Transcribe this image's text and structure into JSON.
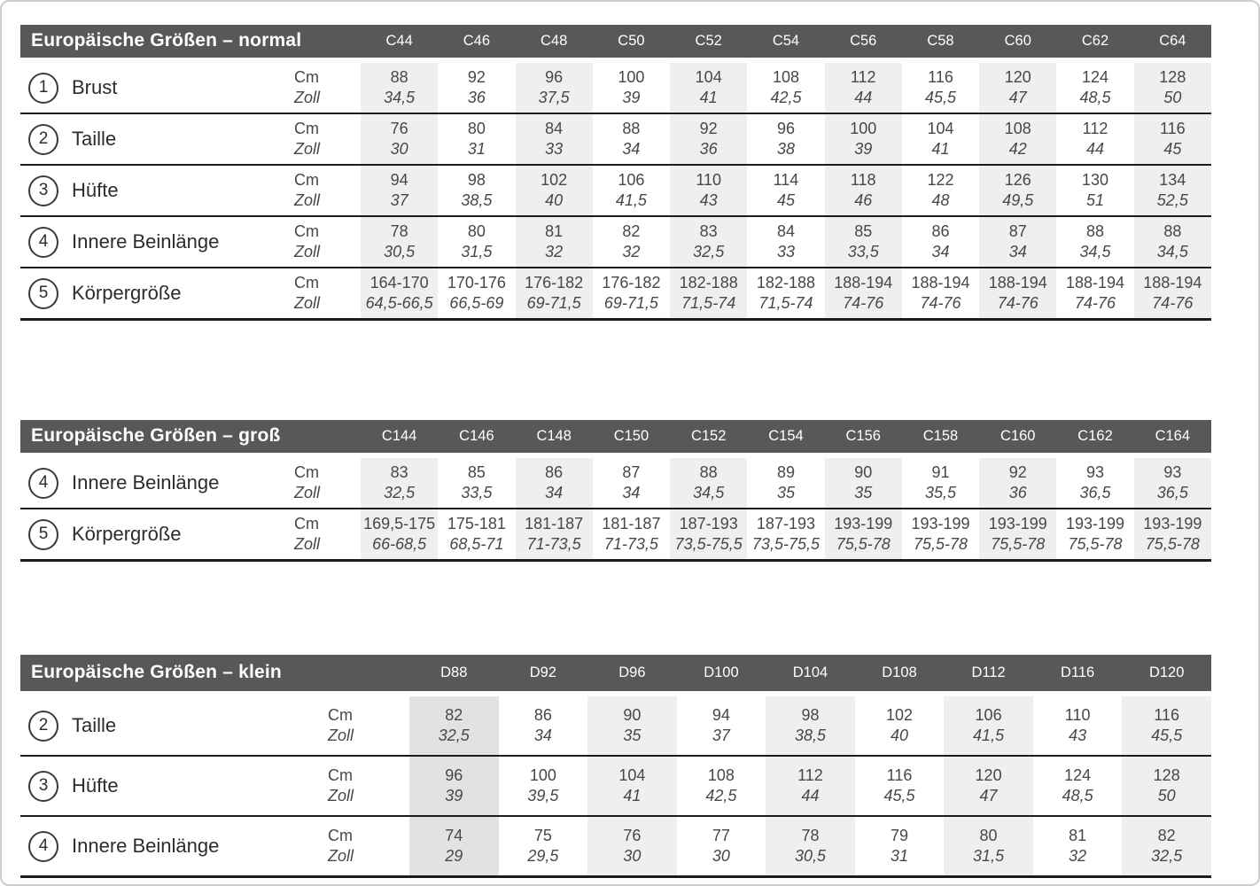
{
  "colors": {
    "header_bg": "#58585a",
    "header_text": "#ffffff",
    "column_band": "#efefef",
    "column_band_dark": "#e2e2e2",
    "separator_line": "#1c1c1c",
    "page_border": "#cdcdcd",
    "value_text": "#47474a"
  },
  "units": {
    "cm": "Cm",
    "zoll": "Zoll"
  },
  "tables": [
    {
      "title": "Europäische Größen – normal",
      "columns": [
        "C44",
        "C46",
        "C48",
        "C50",
        "C52",
        "C54",
        "C56",
        "C58",
        "C60",
        "C62",
        "C64"
      ],
      "rows": [
        {
          "num": "1",
          "label": "Brust",
          "cm": [
            "88",
            "92",
            "96",
            "100",
            "104",
            "108",
            "112",
            "116",
            "120",
            "124",
            "128"
          ],
          "zoll": [
            "34,5",
            "36",
            "37,5",
            "39",
            "41",
            "42,5",
            "44",
            "45,5",
            "47",
            "48,5",
            "50"
          ]
        },
        {
          "num": "2",
          "label": "Taille",
          "cm": [
            "76",
            "80",
            "84",
            "88",
            "92",
            "96",
            "100",
            "104",
            "108",
            "112",
            "116"
          ],
          "zoll": [
            "30",
            "31",
            "33",
            "34",
            "36",
            "38",
            "39",
            "41",
            "42",
            "44",
            "45"
          ]
        },
        {
          "num": "3",
          "label": "Hüfte",
          "cm": [
            "94",
            "98",
            "102",
            "106",
            "110",
            "114",
            "118",
            "122",
            "126",
            "130",
            "134"
          ],
          "zoll": [
            "37",
            "38,5",
            "40",
            "41,5",
            "43",
            "45",
            "46",
            "48",
            "49,5",
            "51",
            "52,5"
          ]
        },
        {
          "num": "4",
          "label": "Innere Beinlänge",
          "cm": [
            "78",
            "80",
            "81",
            "82",
            "83",
            "84",
            "85",
            "86",
            "87",
            "88",
            "88"
          ],
          "zoll": [
            "30,5",
            "31,5",
            "32",
            "32",
            "32,5",
            "33",
            "33,5",
            "34",
            "34",
            "34,5",
            "34,5"
          ]
        },
        {
          "num": "5",
          "label": "Körpergröße",
          "cm": [
            "164-170",
            "170-176",
            "176-182",
            "176-182",
            "182-188",
            "182-188",
            "188-194",
            "188-194",
            "188-194",
            "188-194",
            "188-194"
          ],
          "zoll": [
            "64,5-66,5",
            "66,5-69",
            "69-71,5",
            "69-71,5",
            "71,5-74",
            "71,5-74",
            "74-76",
            "74-76",
            "74-76",
            "74-76",
            "74-76"
          ]
        }
      ]
    },
    {
      "title": "Europäische Größen – groß",
      "columns": [
        "C144",
        "C146",
        "C148",
        "C150",
        "C152",
        "C154",
        "C156",
        "C158",
        "C160",
        "C162",
        "C164"
      ],
      "rows": [
        {
          "num": "4",
          "label": "Innere Beinlänge",
          "cm": [
            "83",
            "85",
            "86",
            "87",
            "88",
            "89",
            "90",
            "91",
            "92",
            "93",
            "93"
          ],
          "zoll": [
            "32,5",
            "33,5",
            "34",
            "34",
            "34,5",
            "35",
            "35",
            "35,5",
            "36",
            "36,5",
            "36,5"
          ]
        },
        {
          "num": "5",
          "label": "Körpergröße",
          "cm": [
            "169,5-175",
            "175-181",
            "181-187",
            "181-187",
            "187-193",
            "187-193",
            "193-199",
            "193-199",
            "193-199",
            "193-199",
            "193-199"
          ],
          "zoll": [
            "66-68,5",
            "68,5-71",
            "71-73,5",
            "71-73,5",
            "73,5-75,5",
            "73,5-75,5",
            "75,5-78",
            "75,5-78",
            "75,5-78",
            "75,5-78",
            "75,5-78"
          ]
        }
      ]
    },
    {
      "title": "Europäische Größen – klein",
      "columns": [
        "D88",
        "D92",
        "D96",
        "D100",
        "D104",
        "D108",
        "D112",
        "D116",
        "D120"
      ],
      "rows": [
        {
          "num": "2",
          "label": "Taille",
          "cm": [
            "82",
            "86",
            "90",
            "94",
            "98",
            "102",
            "106",
            "110",
            "116"
          ],
          "zoll": [
            "32,5",
            "34",
            "35",
            "37",
            "38,5",
            "40",
            "41,5",
            "43",
            "45,5"
          ]
        },
        {
          "num": "3",
          "label": "Hüfte",
          "cm": [
            "96",
            "100",
            "104",
            "108",
            "112",
            "116",
            "120",
            "124",
            "128"
          ],
          "zoll": [
            "39",
            "39,5",
            "41",
            "42,5",
            "44",
            "45,5",
            "47",
            "48,5",
            "50"
          ]
        },
        {
          "num": "4",
          "label": "Innere Beinlänge",
          "cm": [
            "74",
            "75",
            "76",
            "77",
            "78",
            "79",
            "80",
            "81",
            "82"
          ],
          "zoll": [
            "29",
            "29,5",
            "30",
            "30",
            "30,5",
            "31",
            "31,5",
            "32",
            "32,5"
          ]
        }
      ]
    }
  ]
}
